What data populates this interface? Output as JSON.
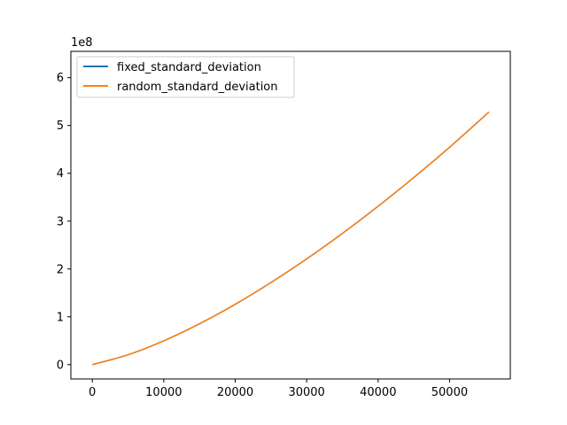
{
  "chart_data": {
    "type": "line",
    "title": "",
    "xlabel": "",
    "ylabel": "",
    "y_offset_label": "1e8",
    "xlim": [
      -3000,
      58500
    ],
    "ylim": [
      -0.3,
      6.55
    ],
    "y_scale_note": "values in units of 1e8",
    "x_ticks": [
      0,
      10000,
      20000,
      30000,
      40000,
      50000
    ],
    "x_tick_labels": [
      "0",
      "10000",
      "20000",
      "30000",
      "40000",
      "50000"
    ],
    "y_ticks": [
      0,
      1,
      2,
      3,
      4,
      5,
      6
    ],
    "y_tick_labels": [
      "0",
      "1",
      "2",
      "3",
      "4",
      "5",
      "6"
    ],
    "grid": false,
    "legend_position": "top-left",
    "series": [
      {
        "name": "fixed_standard_deviation",
        "color": "#1f77b4",
        "x": [
          0,
          5000,
          10000,
          15000,
          20000,
          25000,
          30000,
          35000,
          40000,
          45000,
          50000,
          55500
        ],
        "y": [
          0,
          0.205,
          0.497,
          0.853,
          1.261,
          1.715,
          2.21,
          2.743,
          3.311,
          3.913,
          4.545,
          5.28
        ]
      },
      {
        "name": "random_standard_deviation",
        "color": "#ff7f0e",
        "x": [
          0,
          5000,
          10000,
          15000,
          20000,
          25000,
          30000,
          35000,
          40000,
          45000,
          50000,
          55500
        ],
        "y": [
          0,
          0.205,
          0.497,
          0.853,
          1.261,
          1.715,
          2.21,
          2.743,
          3.311,
          3.913,
          4.545,
          5.28
        ]
      }
    ]
  }
}
